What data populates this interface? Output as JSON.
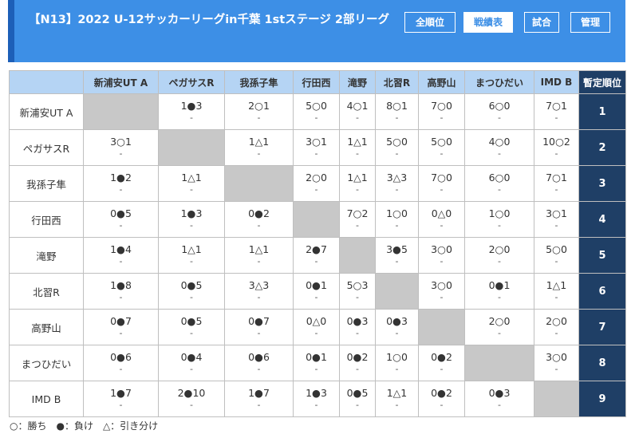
{
  "header": {
    "title": "【N13】2022 U-12サッカーリーグin千葉 1stステージ 2部リーグ",
    "buttons": [
      "全順位",
      "戦績表",
      "試合",
      "管理"
    ],
    "active_button": "戦績表"
  },
  "table": {
    "rank_header": "暫定順位",
    "teams": [
      "新浦安UT A",
      "ペガサスR",
      "我孫子隼",
      "行田西",
      "滝野",
      "北習R",
      "高野山",
      "まつひだい",
      "IMD B"
    ],
    "rows": [
      {
        "team": "新浦安UT A",
        "rank": "1",
        "cells": [
          null,
          "1●3",
          "2○1",
          "5○0",
          "4○1",
          "8○1",
          "7○0",
          "6○0",
          "7○1"
        ]
      },
      {
        "team": "ペガサスR",
        "rank": "2",
        "cells": [
          "3○1",
          null,
          "1△1",
          "3○1",
          "1△1",
          "5○0",
          "5○0",
          "4○0",
          "10○2"
        ]
      },
      {
        "team": "我孫子隼",
        "rank": "3",
        "cells": [
          "1●2",
          "1△1",
          null,
          "2○0",
          "1△1",
          "3△3",
          "7○0",
          "6○0",
          "7○1"
        ]
      },
      {
        "team": "行田西",
        "rank": "4",
        "cells": [
          "0●5",
          "1●3",
          "0●2",
          null,
          "7○2",
          "1○0",
          "0△0",
          "1○0",
          "3○1"
        ]
      },
      {
        "team": "滝野",
        "rank": "5",
        "cells": [
          "1●4",
          "1△1",
          "1△1",
          "2●7",
          null,
          "3●5",
          "3○0",
          "2○0",
          "5○0"
        ]
      },
      {
        "team": "北習R",
        "rank": "6",
        "cells": [
          "1●8",
          "0●5",
          "3△3",
          "0●1",
          "5○3",
          null,
          "3○0",
          "0●1",
          "1△1"
        ]
      },
      {
        "team": "高野山",
        "rank": "7",
        "cells": [
          "0●7",
          "0●5",
          "0●7",
          "0△0",
          "0●3",
          "0●3",
          null,
          "2○0",
          "2○0"
        ]
      },
      {
        "team": "まつひだい",
        "rank": "8",
        "cells": [
          "0●6",
          "0●4",
          "0●6",
          "0●1",
          "0●2",
          "1○0",
          "0●2",
          null,
          "3○0"
        ]
      },
      {
        "team": "IMD B",
        "rank": "9",
        "cells": [
          "1●7",
          "2●10",
          "1●7",
          "1●3",
          "0●5",
          "1△1",
          "0●2",
          "0●3",
          null
        ]
      }
    ],
    "sub_text": "-"
  },
  "legend": "○：勝ち　●：負け　△：引き分け"
}
